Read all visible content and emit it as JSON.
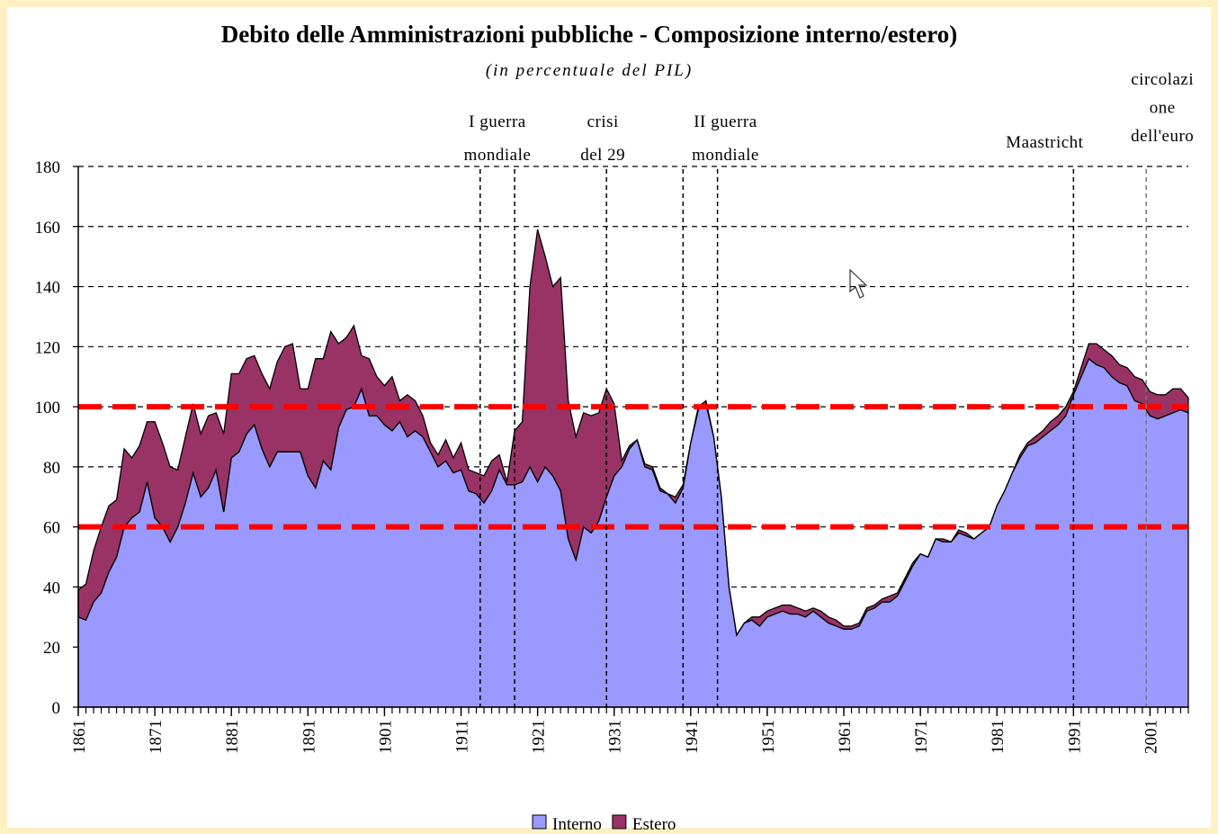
{
  "chart_data": {
    "type": "stacked_area",
    "title": "Debito delle Amministrazioni pubbliche - Composizione interno/estero)",
    "subtitle": "(in percentuale del PIL)",
    "x": [
      1861,
      1862,
      1863,
      1864,
      1865,
      1866,
      1867,
      1868,
      1869,
      1870,
      1871,
      1872,
      1873,
      1874,
      1875,
      1876,
      1877,
      1878,
      1879,
      1880,
      1881,
      1882,
      1883,
      1884,
      1885,
      1886,
      1887,
      1888,
      1889,
      1890,
      1891,
      1892,
      1893,
      1894,
      1895,
      1896,
      1897,
      1898,
      1899,
      1900,
      1901,
      1902,
      1903,
      1904,
      1905,
      1906,
      1907,
      1908,
      1909,
      1910,
      1911,
      1912,
      1913,
      1914,
      1915,
      1916,
      1917,
      1918,
      1919,
      1920,
      1921,
      1922,
      1923,
      1924,
      1925,
      1926,
      1927,
      1928,
      1929,
      1930,
      1931,
      1932,
      1933,
      1934,
      1935,
      1936,
      1937,
      1938,
      1939,
      1940,
      1941,
      1942,
      1943,
      1944,
      1945,
      1946,
      1947,
      1948,
      1949,
      1950,
      1951,
      1952,
      1953,
      1954,
      1955,
      1956,
      1957,
      1958,
      1959,
      1960,
      1961,
      1962,
      1963,
      1964,
      1965,
      1966,
      1967,
      1968,
      1969,
      1970,
      1971,
      1972,
      1973,
      1974,
      1975,
      1976,
      1977,
      1978,
      1979,
      1980,
      1981,
      1982,
      1983,
      1984,
      1985,
      1986,
      1987,
      1988,
      1989,
      1990,
      1991,
      1992,
      1993,
      1994,
      1995,
      1996,
      1997,
      1998,
      1999,
      2000,
      2001,
      2002,
      2003,
      2004,
      2005,
      2006
    ],
    "series": [
      {
        "name": "Interno",
        "color": "#9999ff",
        "values": [
          30,
          29,
          35,
          38,
          45,
          50,
          60,
          63,
          65,
          75,
          63,
          60,
          55,
          60,
          68,
          78,
          70,
          73,
          79,
          65,
          83,
          85,
          91,
          94,
          86,
          80,
          85,
          85,
          85,
          85,
          77,
          73,
          82,
          79,
          93,
          99,
          100,
          106,
          97,
          97,
          94,
          92,
          95,
          90,
          92,
          90,
          85,
          80,
          82,
          78,
          79,
          72,
          71,
          68,
          72,
          79,
          74,
          74,
          75,
          80,
          75,
          80,
          77,
          72,
          56,
          49,
          60,
          58,
          62,
          70,
          77,
          80,
          86,
          89,
          80,
          79,
          72,
          71,
          68,
          73,
          88,
          99,
          101,
          90,
          70,
          40,
          24,
          28,
          29,
          27,
          30,
          31,
          32,
          31,
          31,
          30,
          32,
          30,
          28,
          27,
          26,
          26,
          27,
          32,
          33,
          35,
          35,
          37,
          42,
          47,
          51,
          50,
          56,
          55,
          55,
          58,
          57,
          56,
          58,
          60,
          67,
          72,
          78,
          83,
          87,
          88,
          90,
          92,
          94,
          97,
          104,
          110,
          116,
          114,
          113,
          110,
          108,
          107,
          102,
          101,
          97,
          96,
          97,
          98,
          99,
          98
        ]
      },
      {
        "name": "Estero",
        "color": "#993366",
        "values": [
          9,
          12,
          17,
          22,
          22,
          19,
          26,
          20,
          22,
          20,
          32,
          28,
          25,
          19,
          22,
          23,
          21,
          24,
          19,
          26,
          28,
          26,
          25,
          23,
          25,
          26,
          30,
          35,
          36,
          21,
          29,
          43,
          34,
          46,
          28,
          24,
          27,
          11,
          19,
          13,
          13,
          18,
          7,
          14,
          10,
          7,
          3,
          4,
          7,
          5,
          9,
          7,
          7,
          9,
          10,
          5,
          1,
          18,
          20,
          60,
          84,
          70,
          63,
          71,
          46,
          41,
          38,
          39,
          36,
          36,
          24,
          2,
          1,
          0,
          1,
          1,
          1,
          0,
          2,
          1,
          0,
          1,
          1,
          0,
          0,
          0,
          0,
          0,
          1,
          3,
          2,
          2,
          2,
          3,
          2,
          2,
          1,
          2,
          2,
          2,
          1,
          1,
          1,
          1,
          1,
          1,
          2,
          1,
          1,
          1,
          0,
          0,
          0,
          1,
          0,
          1,
          1,
          0,
          0,
          0,
          0,
          0,
          0,
          1,
          1,
          2,
          2,
          3,
          3,
          3,
          1,
          3,
          5,
          7,
          6,
          7,
          6,
          6,
          8,
          8,
          8,
          8,
          7,
          8,
          7,
          5
        ]
      }
    ],
    "xlim": [
      1861,
      2006
    ],
    "xticks": [
      1861,
      1871,
      1881,
      1891,
      1901,
      1911,
      1921,
      1931,
      1941,
      1951,
      1961,
      1971,
      1981,
      1991,
      2001
    ],
    "ylim": [
      0,
      180
    ],
    "yticks": [
      0,
      20,
      40,
      60,
      80,
      100,
      120,
      140,
      160,
      180
    ],
    "grid": true,
    "reference_lines": {
      "values": [
        60,
        100
      ],
      "color": "#ff0000"
    },
    "events": [
      {
        "label": [
          "I guerra",
          "mondiale"
        ],
        "x": [
          1913.5,
          1918
        ]
      },
      {
        "label": [
          "crisi",
          "del 29"
        ],
        "x": [
          1930
        ]
      },
      {
        "label": [
          "II guerra",
          "mondiale"
        ],
        "x": [
          1940,
          1944.5
        ]
      },
      {
        "label": [
          "Maastricht"
        ],
        "x": [
          1991
        ]
      },
      {
        "label": [
          "circolazi",
          "one",
          "dell'euro"
        ],
        "x": [
          2000.5
        ]
      }
    ],
    "legend": "bottom"
  }
}
